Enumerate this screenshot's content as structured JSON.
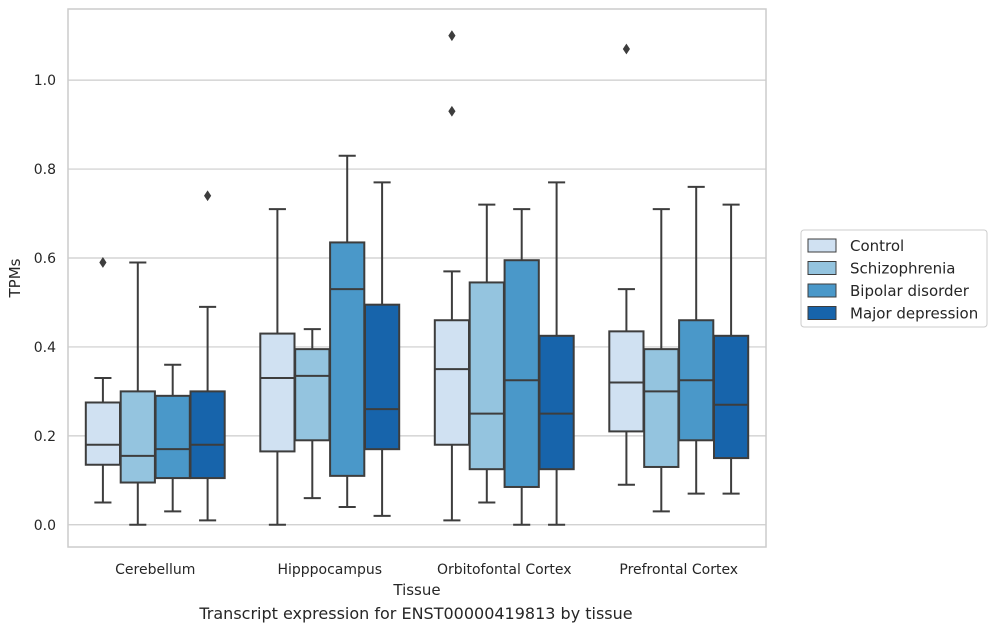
{
  "caption": "Transcript expression for ENST00000419813 by tissue",
  "chart_data": {
    "type": "boxplot",
    "title": "",
    "xlabel": "Tissue",
    "ylabel": "TPMs",
    "ylim": [
      -0.05,
      1.16
    ],
    "yticks": [
      0.0,
      0.2,
      0.4,
      0.6,
      0.8,
      1.0
    ],
    "ytick_labels": [
      "0.0",
      "0.2",
      "0.4",
      "0.6",
      "0.8",
      "1.0"
    ],
    "grid": true,
    "legend_position": "right",
    "categories": [
      "Cerebellum",
      "Hipppocampus",
      "Orbitofontal Cortex",
      "Prefrontal Cortex"
    ],
    "series": [
      {
        "name": "Control",
        "color": "#d0e1f2",
        "boxes": [
          {
            "whisker_low": 0.05,
            "q1": 0.135,
            "median": 0.18,
            "q3": 0.275,
            "whisker_high": 0.33,
            "outliers": [
              0.59
            ]
          },
          {
            "whisker_low": 0.0,
            "q1": 0.165,
            "median": 0.33,
            "q3": 0.43,
            "whisker_high": 0.71,
            "outliers": []
          },
          {
            "whisker_low": 0.01,
            "q1": 0.18,
            "median": 0.35,
            "q3": 0.46,
            "whisker_high": 0.57,
            "outliers": [
              0.93,
              1.1
            ]
          },
          {
            "whisker_low": 0.09,
            "q1": 0.21,
            "median": 0.32,
            "q3": 0.435,
            "whisker_high": 0.53,
            "outliers": [
              1.07
            ]
          }
        ]
      },
      {
        "name": "Schizophrenia",
        "color": "#94c4df",
        "boxes": [
          {
            "whisker_low": 0.0,
            "q1": 0.095,
            "median": 0.155,
            "q3": 0.3,
            "whisker_high": 0.59,
            "outliers": []
          },
          {
            "whisker_low": 0.06,
            "q1": 0.19,
            "median": 0.335,
            "q3": 0.395,
            "whisker_high": 0.44,
            "outliers": []
          },
          {
            "whisker_low": 0.05,
            "q1": 0.125,
            "median": 0.25,
            "q3": 0.545,
            "whisker_high": 0.72,
            "outliers": []
          },
          {
            "whisker_low": 0.03,
            "q1": 0.13,
            "median": 0.3,
            "q3": 0.395,
            "whisker_high": 0.71,
            "outliers": []
          }
        ]
      },
      {
        "name": "Bipolar disorder",
        "color": "#4a98c9",
        "boxes": [
          {
            "whisker_low": 0.03,
            "q1": 0.105,
            "median": 0.17,
            "q3": 0.29,
            "whisker_high": 0.36,
            "outliers": []
          },
          {
            "whisker_low": 0.04,
            "q1": 0.11,
            "median": 0.53,
            "q3": 0.635,
            "whisker_high": 0.83,
            "outliers": []
          },
          {
            "whisker_low": 0.0,
            "q1": 0.085,
            "median": 0.325,
            "q3": 0.595,
            "whisker_high": 0.71,
            "outliers": []
          },
          {
            "whisker_low": 0.07,
            "q1": 0.19,
            "median": 0.325,
            "q3": 0.46,
            "whisker_high": 0.76,
            "outliers": []
          }
        ]
      },
      {
        "name": "Major depression",
        "color": "#1764ab",
        "boxes": [
          {
            "whisker_low": 0.01,
            "q1": 0.105,
            "median": 0.18,
            "q3": 0.3,
            "whisker_high": 0.49,
            "outliers": [
              0.74
            ]
          },
          {
            "whisker_low": 0.02,
            "q1": 0.17,
            "median": 0.26,
            "q3": 0.495,
            "whisker_high": 0.77,
            "outliers": []
          },
          {
            "whisker_low": 0.0,
            "q1": 0.125,
            "median": 0.25,
            "q3": 0.425,
            "whisker_high": 0.77,
            "outliers": []
          },
          {
            "whisker_low": 0.07,
            "q1": 0.15,
            "median": 0.27,
            "q3": 0.425,
            "whisker_high": 0.72,
            "outliers": []
          }
        ]
      }
    ]
  }
}
